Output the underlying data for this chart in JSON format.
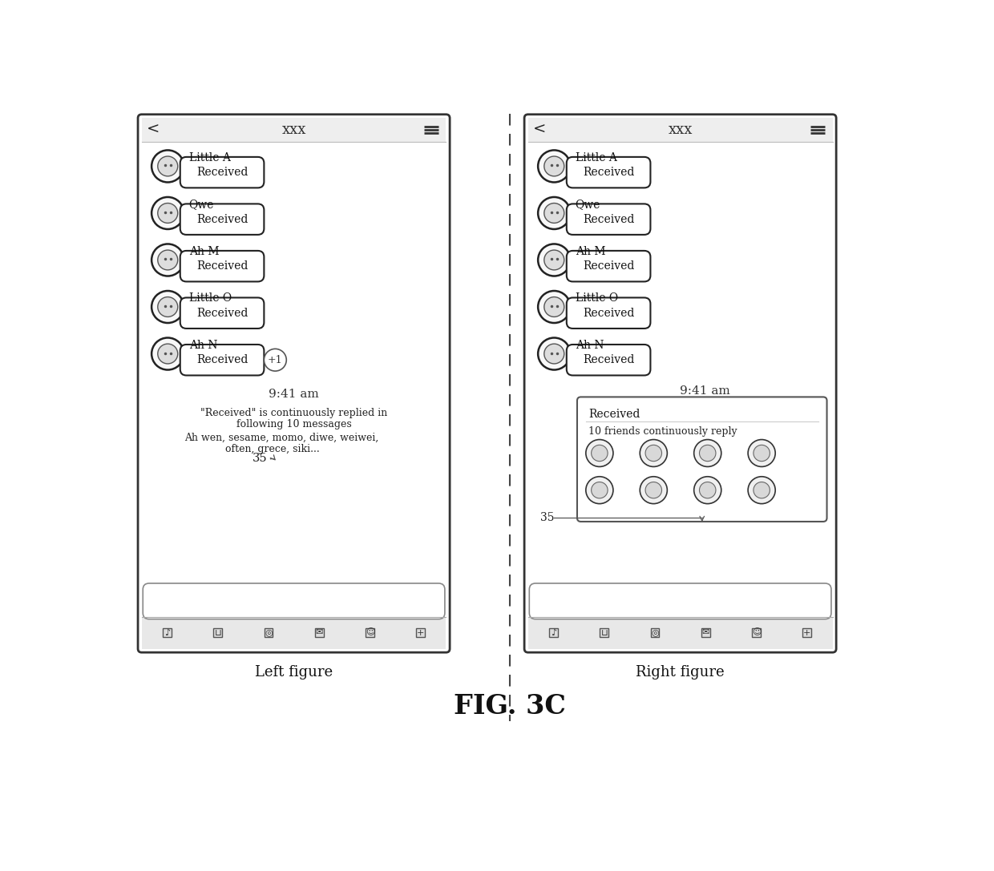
{
  "bg_color": "#ffffff",
  "fig_title": "FIG. 3C",
  "left_label": "Left figure",
  "right_label": "Right figure",
  "contacts": [
    "Little A",
    "Qwe",
    "Ah M",
    "Little O",
    "Ah N"
  ],
  "time_text": "9:41 am",
  "left_popup_lines": [
    "\"Received\" is continuously replied in",
    "following 10 messages",
    "Ah wen, sesame, momo, diwe, weiwei,",
    "often, grece, siki..."
  ],
  "left_count": "35",
  "right_popup_title": "Received",
  "right_popup_subtitle": "10 friends continuously reply",
  "right_count": "35"
}
